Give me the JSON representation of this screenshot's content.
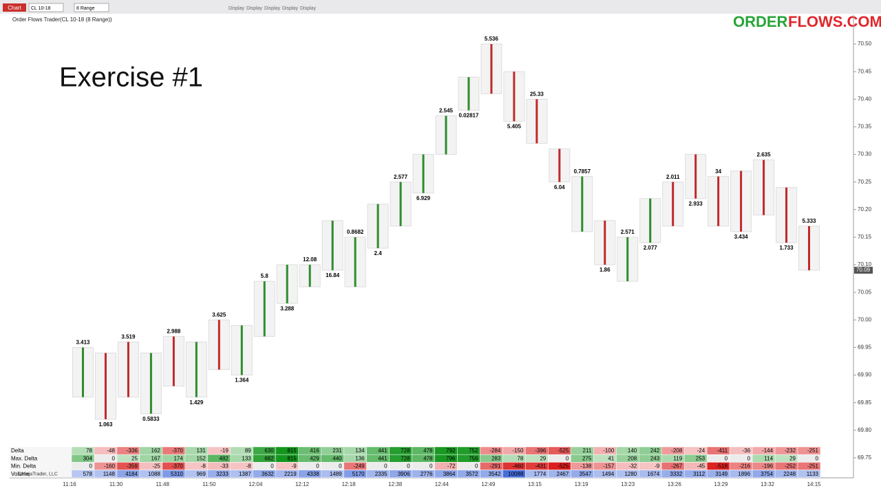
{
  "toolbar": {
    "chart_tab": "Chart",
    "instrument": "CL 10-18",
    "interval": "8 Range",
    "buttons": [
      "Display",
      "Display",
      "Display",
      "Display",
      "Display"
    ]
  },
  "header": {
    "title": "Order Flows Trader(CL 10-18 (8 Range))",
    "exercise": "Exercise #1",
    "logo_left": "ORDER",
    "logo_right": "FLOWS.COM"
  },
  "price_axis": {
    "ylim": [
      69.72,
      70.53
    ],
    "ticks": [
      {
        "value": 70.5,
        "label": "70.50"
      },
      {
        "value": 70.45,
        "label": "70.45"
      },
      {
        "value": 70.4,
        "label": "70.40"
      },
      {
        "value": 70.35,
        "label": "70.35"
      },
      {
        "value": 70.3,
        "label": "70.30"
      },
      {
        "value": 70.25,
        "label": "70.25"
      },
      {
        "value": 70.2,
        "label": "70.20"
      },
      {
        "value": 70.15,
        "label": "70.15"
      },
      {
        "value": 70.1,
        "label": "70.10"
      },
      {
        "value": 70.05,
        "label": "70.05"
      },
      {
        "value": 70,
        "label": "70.00"
      },
      {
        "value": 69.95,
        "label": "69.95"
      },
      {
        "value": 69.9,
        "label": "69.90"
      },
      {
        "value": 69.85,
        "label": "69.85"
      },
      {
        "value": 69.8,
        "label": "69.80"
      },
      {
        "value": 69.75,
        "label": "69.75"
      }
    ],
    "last_price": {
      "value": 70.09,
      "label": "70.09"
    }
  },
  "bars": [
    {
      "low": 69.86,
      "high": 69.95,
      "label": 3.413
    },
    {
      "low": 69.82,
      "high": 69.94,
      "label": 1.063
    },
    {
      "low": 69.86,
      "high": 69.96,
      "label": 3.519
    },
    {
      "low": 69.83,
      "high": 69.94,
      "label": 0.5833
    },
    {
      "low": 69.88,
      "high": 69.97,
      "label": 2.988
    },
    {
      "low": 69.86,
      "high": 69.96,
      "label": 1.429
    },
    {
      "low": 69.91,
      "high": 70.0,
      "label": 3.625
    },
    {
      "low": 69.9,
      "high": 69.99,
      "label": 1.364
    },
    {
      "low": 69.97,
      "high": 70.07,
      "label": 5.8
    },
    {
      "low": 70.03,
      "high": 70.1,
      "label": 3.288
    },
    {
      "low": 70.06,
      "high": 70.1,
      "label": 12.08
    },
    {
      "low": 70.09,
      "high": 70.18,
      "label": 16.84
    },
    {
      "low": 70.06,
      "high": 70.15,
      "label": 0.8682
    },
    {
      "low": 70.13,
      "high": 70.21,
      "label": 2.4
    },
    {
      "low": 70.17,
      "high": 70.25,
      "label": 2.577
    },
    {
      "low": 70.23,
      "high": 70.3,
      "label": 6.929
    },
    {
      "low": 70.3,
      "high": 70.37,
      "label": 2.545
    },
    {
      "low": 70.38,
      "high": 70.44,
      "label": 0.02817
    },
    {
      "low": 70.41,
      "high": 70.5,
      "label": 5.536
    },
    {
      "low": 70.36,
      "high": 70.45,
      "label": 5.405
    },
    {
      "low": 70.32,
      "high": 70.4,
      "label": 25.33
    },
    {
      "low": 70.25,
      "high": 70.31,
      "label": 6.04
    },
    {
      "low": 70.16,
      "high": 70.26,
      "label": 0.7857
    },
    {
      "low": 70.1,
      "high": 70.18,
      "label": 1.86
    },
    {
      "low": 70.07,
      "high": 70.15,
      "label": 2.571
    },
    {
      "low": 70.14,
      "high": 70.22,
      "label": 2.077
    },
    {
      "low": 70.17,
      "high": 70.25,
      "label": 2.011
    },
    {
      "low": 70.22,
      "high": 70.3,
      "label": 2.933
    },
    {
      "low": 70.17,
      "high": 70.26,
      "label": 34
    },
    {
      "low": 70.16,
      "high": 70.27,
      "label": 3.434
    },
    {
      "low": 70.19,
      "high": 70.29,
      "label": 2.635
    },
    {
      "low": 70.14,
      "high": 70.24,
      "label": 1.733
    },
    {
      "low": 70.09,
      "high": 70.17,
      "label": 5.333
    }
  ],
  "stats": {
    "rows": [
      {
        "name": "Delta",
        "values": [
          78,
          -48,
          -336,
          162,
          -370,
          131,
          -19,
          89,
          630,
          815,
          416,
          231,
          134,
          441,
          728,
          478,
          792,
          752,
          -284,
          -150,
          -396,
          -525,
          211,
          -100,
          140,
          242,
          -208,
          -24,
          -411,
          -36,
          -144,
          -232,
          -251
        ]
      },
      {
        "name": "Max. Delta",
        "values": [
          304,
          0,
          25,
          167,
          174,
          152,
          482,
          133,
          682,
          815,
          429,
          440,
          136,
          441,
          728,
          478,
          796,
          756,
          283,
          78,
          29,
          0,
          275,
          41,
          208,
          243,
          119,
          253,
          0,
          0,
          114,
          29,
          0
        ]
      },
      {
        "name": "Min. Delta",
        "values": [
          0,
          -160,
          -359,
          -25,
          -370,
          -8,
          -33,
          -8,
          0,
          -9,
          0,
          0,
          -249,
          0,
          0,
          0,
          -72,
          0,
          -291,
          -460,
          -431,
          -525,
          -138,
          -157,
          -32,
          -9,
          -267,
          -45,
          -518,
          -216,
          -196,
          -252,
          -251
        ]
      },
      {
        "name": "Volume",
        "values": [
          578,
          1148,
          4184,
          1088,
          5310,
          969,
          3233,
          1387,
          3632,
          2219,
          4338,
          1489,
          5170,
          2335,
          3906,
          2776,
          3864,
          3572,
          3542,
          10088,
          1774,
          2467,
          3547,
          1494,
          1280,
          1674,
          3332,
          3112,
          3149,
          1896,
          3754,
          2248,
          1133
        ]
      }
    ],
    "copyright": "©NinjaTrader, LLC"
  },
  "time_axis": [
    "11:16",
    "11:30",
    "11:48",
    "11:50",
    "12:04",
    "12:12",
    "12:18",
    "12:38",
    "12:44",
    "12:49",
    "13:15",
    "13:19",
    "13:23",
    "13:26",
    "13:29",
    "13:32",
    "14:15"
  ]
}
